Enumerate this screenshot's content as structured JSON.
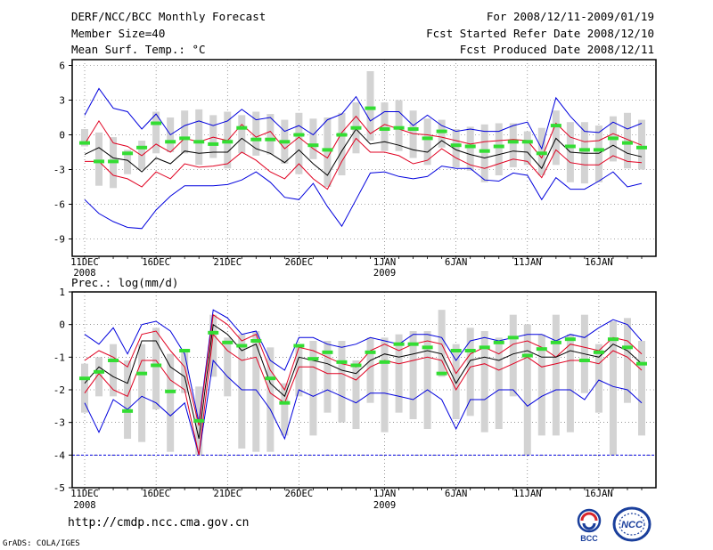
{
  "header": {
    "title": "DERF/NCC/BCC Monthly Forecast",
    "member_size": "Member Size=40",
    "variable": "Mean Surf. Temp.: °C",
    "period": "For 2008/12/11-2009/01/19",
    "started": "Fcst Started Refer Date 2008/12/10",
    "produced": "Fcst Produced Date 2008/12/11"
  },
  "footer": {
    "url": "http://cmdp.ncc.cma.gov.cn",
    "credit": "GrADS: COLA/IGES",
    "logo_left": "BCC",
    "logo_right": "NCC"
  },
  "colors": {
    "mean": "#000000",
    "spread": "#e00020",
    "envelope": "#0000dd",
    "box": "#d3d3d3",
    "median": "#33dd33",
    "axis": "#000000"
  },
  "chart_data": [
    {
      "type": "box-line",
      "title": "Mean Surf. Temp.: °C",
      "ylim": [
        -10.5,
        6.5
      ],
      "yticks": [
        6,
        3,
        0,
        -3,
        -6,
        -9
      ],
      "xlabels": [
        {
          "i": 0,
          "label": "11DEC",
          "sub": "2008"
        },
        {
          "i": 5,
          "label": "16DEC"
        },
        {
          "i": 10,
          "label": "21DEC"
        },
        {
          "i": 15,
          "label": "26DEC"
        },
        {
          "i": 21,
          "label": "1JAN",
          "sub": "2009"
        },
        {
          "i": 26,
          "label": "6JAN"
        },
        {
          "i": 31,
          "label": "11JAN"
        },
        {
          "i": 36,
          "label": "16JAN"
        }
      ],
      "series": [
        {
          "name": "max",
          "color": "#0000dd",
          "values": [
            1.7,
            4.0,
            2.3,
            2.0,
            0.5,
            1.8,
            0.0,
            0.8,
            1.2,
            0.8,
            1.2,
            2.2,
            1.3,
            1.5,
            0.3,
            0.8,
            0.0,
            1.3,
            1.8,
            3.3,
            1.2,
            2.0,
            2.0,
            0.8,
            1.7,
            0.8,
            0.3,
            0.5,
            0.3,
            0.3,
            0.8,
            1.1,
            -1.2,
            3.2,
            1.6,
            0.3,
            0.2,
            1.1,
            0.5,
            1.0
          ]
        },
        {
          "name": "upper",
          "color": "#e00020",
          "values": [
            -0.8,
            1.2,
            -0.7,
            -1.0,
            -1.8,
            -0.8,
            -1.5,
            -0.3,
            -0.6,
            -0.2,
            -0.5,
            0.9,
            -0.2,
            0.3,
            -1.2,
            -0.2,
            -1.2,
            -2.0,
            0.2,
            1.6,
            0.1,
            0.9,
            0.5,
            0.1,
            0.0,
            -0.2,
            -0.5,
            -0.8,
            -0.6,
            -0.5,
            -0.4,
            -0.5,
            -2.0,
            1.0,
            -0.2,
            -0.6,
            -0.5,
            0.1,
            -0.4,
            -0.9
          ]
        },
        {
          "name": "mean",
          "color": "#000000",
          "values": [
            -1.7,
            -1.1,
            -2.0,
            -2.2,
            -3.2,
            -2.0,
            -2.5,
            -1.4,
            -1.6,
            -1.5,
            -1.5,
            -0.3,
            -1.2,
            -1.6,
            -2.4,
            -1.3,
            -2.5,
            -3.5,
            -1.4,
            0.5,
            -0.8,
            -0.6,
            -0.9,
            -1.3,
            -1.5,
            -0.5,
            -1.3,
            -1.7,
            -2.0,
            -1.7,
            -1.4,
            -1.5,
            -2.9,
            -0.3,
            -1.5,
            -1.6,
            -1.6,
            -0.9,
            -1.6,
            -1.9
          ]
        },
        {
          "name": "lower",
          "color": "#e00020",
          "values": [
            -2.3,
            -2.3,
            -3.5,
            -3.8,
            -4.5,
            -3.2,
            -3.8,
            -2.5,
            -2.8,
            -2.7,
            -2.5,
            -1.5,
            -2.2,
            -3.2,
            -3.8,
            -2.5,
            -3.8,
            -4.7,
            -2.3,
            -0.3,
            -1.5,
            -1.5,
            -1.8,
            -2.5,
            -2.2,
            -1.2,
            -2.0,
            -2.6,
            -2.9,
            -2.5,
            -2.1,
            -2.3,
            -3.7,
            -1.3,
            -2.4,
            -2.6,
            -2.6,
            -1.8,
            -2.3,
            -2.4
          ]
        },
        {
          "name": "min",
          "color": "#0000dd",
          "values": [
            -5.6,
            -6.8,
            -7.5,
            -8.0,
            -8.1,
            -6.5,
            -5.3,
            -4.4,
            -4.4,
            -4.4,
            -4.3,
            -3.9,
            -3.2,
            -4.1,
            -5.4,
            -5.6,
            -4.2,
            -6.2,
            -7.9,
            -5.6,
            -3.3,
            -3.2,
            -3.6,
            -3.8,
            -3.6,
            -2.7,
            -2.9,
            -2.9,
            -3.9,
            -4.0,
            -3.3,
            -3.5,
            -5.6,
            -3.7,
            -4.7,
            -4.7,
            -4.0,
            -3.2,
            -4.5,
            -4.2
          ]
        },
        {
          "name": "median",
          "color": "#33dd33",
          "values": [
            -0.7,
            -2.3,
            -2.3,
            -1.6,
            -1.1,
            1.0,
            -0.6,
            -0.3,
            -0.6,
            -0.8,
            -0.6,
            0.6,
            -0.4,
            -0.4,
            -0.6,
            0.0,
            -0.9,
            -1.3,
            0.0,
            0.6,
            2.3,
            0.5,
            0.6,
            0.5,
            -0.3,
            0.3,
            -0.9,
            -1.0,
            -1.4,
            -1.0,
            -0.6,
            -0.6,
            -1.6,
            0.8,
            -1.0,
            -1.3,
            -1.3,
            -0.3,
            -0.7,
            -1.1
          ]
        },
        {
          "name": "box_top",
          "color": "#d3d3d3",
          "values": [
            0.5,
            0.2,
            -0.2,
            -1.3,
            -0.5,
            2.0,
            1.5,
            2.1,
            2.2,
            1.7,
            2.0,
            1.7,
            2.0,
            1.8,
            1.3,
            1.9,
            1.4,
            1.5,
            1.9,
            2.8,
            5.5,
            2.8,
            3.0,
            2.1,
            1.4,
            1.3,
            0.5,
            0.7,
            0.9,
            1.0,
            1.0,
            0.3,
            0.6,
            2.1,
            1.1,
            1.1,
            0.8,
            1.6,
            1.9,
            1.3
          ]
        },
        {
          "name": "box_bottom",
          "color": "#d3d3d3",
          "values": [
            -1.0,
            -4.4,
            -4.6,
            -3.4,
            -3.0,
            -1.6,
            -1.5,
            -1.6,
            -2.6,
            -2.0,
            -2.9,
            -1.6,
            -1.8,
            -1.7,
            -2.5,
            -3.4,
            -2.1,
            -4.5,
            -3.5,
            -1.6,
            -0.5,
            -1.4,
            -1.4,
            -2.0,
            -2.6,
            -1.1,
            -2.8,
            -3.1,
            -4.1,
            -3.5,
            -2.8,
            -2.6,
            -3.5,
            -2.6,
            -4.1,
            -4.2,
            -4.1,
            -2.3,
            -2.9,
            -3.0
          ]
        }
      ]
    },
    {
      "type": "box-line",
      "title": "Prec.: log(mm/d)",
      "ylim": [
        -5,
        1
      ],
      "yticks": [
        1,
        0,
        -1,
        -2,
        -3,
        -4,
        -5
      ],
      "baseline": -4,
      "xlabels": [
        {
          "i": 0,
          "label": "11DEC",
          "sub": "2008"
        },
        {
          "i": 5,
          "label": "16DEC"
        },
        {
          "i": 10,
          "label": "21DEC"
        },
        {
          "i": 15,
          "label": "26DEC"
        },
        {
          "i": 21,
          "label": "1JAN",
          "sub": "2009"
        },
        {
          "i": 26,
          "label": "6JAN"
        },
        {
          "i": 31,
          "label": "11JAN"
        },
        {
          "i": 36,
          "label": "16JAN"
        }
      ],
      "series": [
        {
          "name": "max",
          "color": "#0000dd",
          "values": [
            -0.3,
            -0.6,
            -0.1,
            -0.9,
            0.0,
            0.1,
            -0.2,
            -0.9,
            -3.0,
            0.45,
            0.2,
            -0.3,
            -0.2,
            -1.1,
            -1.4,
            -0.4,
            -0.4,
            -0.6,
            -0.7,
            -0.6,
            -0.4,
            -0.5,
            -0.6,
            -0.3,
            -0.3,
            -0.4,
            -1.1,
            -0.5,
            -0.4,
            -0.5,
            -0.4,
            -0.3,
            -0.3,
            -0.5,
            -0.3,
            -0.4,
            -0.1,
            0.15,
            0.0,
            -0.5
          ]
        },
        {
          "name": "upper",
          "color": "#e00020",
          "values": [
            -1.1,
            -0.8,
            -1.0,
            -1.3,
            -0.3,
            -0.2,
            -0.8,
            -1.3,
            -3.1,
            0.3,
            0.0,
            -0.5,
            -0.3,
            -1.4,
            -2.0,
            -0.7,
            -0.8,
            -1.0,
            -1.2,
            -1.3,
            -0.8,
            -0.6,
            -0.8,
            -0.6,
            -0.5,
            -0.6,
            -1.5,
            -0.9,
            -0.7,
            -0.9,
            -0.6,
            -0.5,
            -0.7,
            -1.0,
            -0.6,
            -0.7,
            -0.8,
            -0.4,
            -0.5,
            -0.9
          ]
        },
        {
          "name": "mean",
          "color": "#000000",
          "values": [
            -1.8,
            -1.3,
            -1.6,
            -1.8,
            -0.5,
            -0.5,
            -1.3,
            -1.6,
            -3.5,
            0.0,
            -0.3,
            -0.8,
            -0.6,
            -1.8,
            -2.2,
            -1.0,
            -1.1,
            -1.2,
            -1.4,
            -1.5,
            -1.1,
            -0.9,
            -1.0,
            -0.9,
            -0.8,
            -0.9,
            -1.8,
            -1.1,
            -1.0,
            -1.1,
            -0.9,
            -0.8,
            -1.0,
            -1.0,
            -0.8,
            -0.9,
            -1.0,
            -0.6,
            -0.8,
            -1.2
          ]
        },
        {
          "name": "lower",
          "color": "#e00020",
          "values": [
            -2.1,
            -1.5,
            -2.0,
            -2.2,
            -1.1,
            -1.1,
            -1.7,
            -2.0,
            -4.0,
            -0.3,
            -0.8,
            -1.1,
            -1.0,
            -2.1,
            -2.4,
            -1.3,
            -1.3,
            -1.5,
            -1.5,
            -1.7,
            -1.3,
            -1.1,
            -1.2,
            -1.1,
            -1.0,
            -1.1,
            -2.0,
            -1.3,
            -1.2,
            -1.4,
            -1.2,
            -1.0,
            -1.3,
            -1.2,
            -1.1,
            -1.1,
            -1.2,
            -0.8,
            -1.0,
            -1.4
          ]
        },
        {
          "name": "min",
          "color": "#0000dd",
          "values": [
            -2.4,
            -3.3,
            -2.3,
            -2.6,
            -2.2,
            -2.4,
            -2.8,
            -2.4,
            -4.0,
            -1.1,
            -1.6,
            -2.0,
            -2.0,
            -2.6,
            -3.5,
            -2.0,
            -2.2,
            -2.0,
            -2.2,
            -2.4,
            -2.1,
            -2.1,
            -2.2,
            -2.3,
            -2.0,
            -2.3,
            -3.2,
            -2.3,
            -2.3,
            -2.0,
            -2.0,
            -2.5,
            -2.2,
            -2.0,
            -2.0,
            -2.3,
            -1.7,
            -1.9,
            -2.0,
            -2.4
          ]
        },
        {
          "name": "median",
          "color": "#33dd33",
          "values": [
            -1.65,
            -1.45,
            -1.1,
            -2.65,
            -1.5,
            -1.25,
            -2.05,
            -0.8,
            -2.95,
            -0.25,
            -0.55,
            -0.65,
            -0.5,
            -1.65,
            -2.4,
            -0.65,
            -1.05,
            -0.85,
            -1.15,
            -1.25,
            -0.85,
            -1.15,
            -0.6,
            -0.6,
            -0.7,
            -1.5,
            -0.8,
            -0.8,
            -0.7,
            -0.55,
            -0.4,
            -0.95,
            -0.75,
            -0.55,
            -0.45,
            -1.1,
            -0.85,
            -0.45,
            -0.7,
            -1.2
          ]
        },
        {
          "name": "box_top",
          "color": "#d3d3d3",
          "values": [
            -1.2,
            -1.0,
            -0.6,
            -1.1,
            -0.6,
            -0.1,
            -0.9,
            -0.8,
            -1.9,
            0.3,
            -0.4,
            -0.3,
            -0.2,
            -0.7,
            -1.8,
            -0.7,
            -0.5,
            -0.5,
            -0.5,
            -1.1,
            -0.4,
            -0.4,
            -0.3,
            -0.2,
            -0.2,
            0.45,
            -0.6,
            -0.1,
            -0.2,
            -0.4,
            0.3,
            0.0,
            -0.3,
            0.3,
            -0.3,
            0.3,
            -0.6,
            0.1,
            0.2,
            -0.5
          ]
        },
        {
          "name": "box_bottom",
          "color": "#d3d3d3",
          "values": [
            -2.7,
            -2.2,
            -2.2,
            -3.5,
            -3.6,
            -2.6,
            -3.9,
            -2.1,
            -4.0,
            -1.6,
            -2.2,
            -3.8,
            -3.9,
            -3.9,
            -3.4,
            -2.2,
            -3.4,
            -2.7,
            -3.0,
            -3.2,
            -2.4,
            -3.3,
            -2.7,
            -2.9,
            -3.2,
            -1.6,
            -2.9,
            -2.8,
            -3.3,
            -3.2,
            -2.2,
            -4.0,
            -3.4,
            -3.4,
            -3.3,
            -2.1,
            -2.7,
            -4.0,
            -2.4,
            -3.4
          ]
        }
      ]
    }
  ]
}
